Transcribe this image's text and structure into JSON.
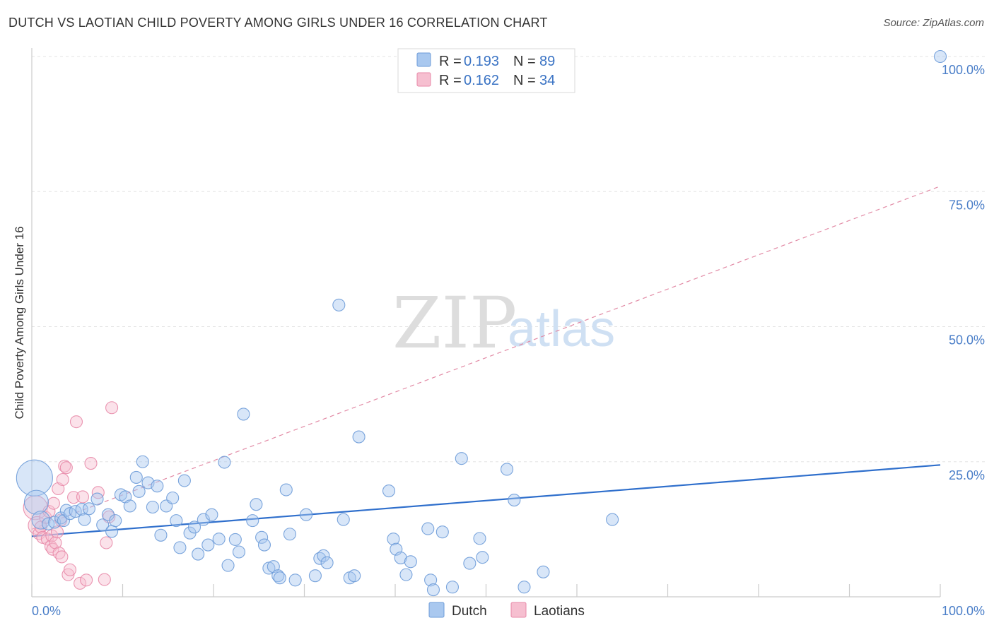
{
  "header": {
    "title": "DUTCH VS LAOTIAN CHILD POVERTY AMONG GIRLS UNDER 16 CORRELATION CHART",
    "source": "Source: ZipAtlas.com"
  },
  "watermark": {
    "zip": "ZIP",
    "atlas": "atlas"
  },
  "legend": {
    "series": [
      {
        "name": "Dutch",
        "r_label": "R =",
        "r_value": "0.193",
        "n_label": "N =",
        "n_value": "89"
      },
      {
        "name": "Laotians",
        "r_label": "R =",
        "r_value": "0.162",
        "n_label": "N =",
        "n_value": "34"
      }
    ]
  },
  "colors": {
    "dutch_fill": "#a9c8ef",
    "dutch_stroke": "#6d9bd8",
    "dutch_line": "#2f6fcc",
    "laotian_fill": "#f6bfd0",
    "laotian_stroke": "#e889a8",
    "laotian_line": "#e28aa5",
    "tick_text": "#4a7ec8"
  },
  "chart_data": {
    "type": "scatter",
    "title": "DUTCH VS LAOTIAN CHILD POVERTY AMONG GIRLS UNDER 16 CORRELATION CHART",
    "xlabel": "",
    "ylabel": "Child Poverty Among Girls Under 16",
    "xlim": [
      0,
      100
    ],
    "ylim": [
      0,
      100
    ],
    "x_tick_labels": [
      {
        "value": 0,
        "label": "0.0%"
      },
      {
        "value": 100,
        "label": "100.0%"
      }
    ],
    "y_tick_labels": [
      {
        "value": 25,
        "label": "25.0%"
      },
      {
        "value": 50,
        "label": "50.0%"
      },
      {
        "value": 75,
        "label": "75.0%"
      },
      {
        "value": 100,
        "label": "100.0%"
      }
    ],
    "grid": true,
    "series": [
      {
        "name": "Dutch",
        "trend": {
          "x": [
            0,
            100
          ],
          "y": [
            11.2,
            24.4
          ],
          "style": "solid"
        },
        "points": [
          {
            "x": 0.3,
            "y": 22.0,
            "s": 3
          },
          {
            "x": 0.5,
            "y": 17.5,
            "s": 2
          },
          {
            "x": 1.0,
            "y": 14.2,
            "s": 1.5
          },
          {
            "x": 1.8,
            "y": 13.5
          },
          {
            "x": 2.5,
            "y": 13.8
          },
          {
            "x": 3.2,
            "y": 14.6
          },
          {
            "x": 3.5,
            "y": 14.1
          },
          {
            "x": 3.8,
            "y": 16.0
          },
          {
            "x": 4.2,
            "y": 15.4
          },
          {
            "x": 4.8,
            "y": 15.8
          },
          {
            "x": 5.5,
            "y": 16.2
          },
          {
            "x": 5.8,
            "y": 14.3
          },
          {
            "x": 6.3,
            "y": 16.3
          },
          {
            "x": 7.2,
            "y": 18.1
          },
          {
            "x": 7.8,
            "y": 13.3
          },
          {
            "x": 8.4,
            "y": 15.2
          },
          {
            "x": 8.8,
            "y": 12.1
          },
          {
            "x": 9.2,
            "y": 14.1
          },
          {
            "x": 9.8,
            "y": 18.9
          },
          {
            "x": 10.3,
            "y": 18.5
          },
          {
            "x": 10.8,
            "y": 16.8
          },
          {
            "x": 11.5,
            "y": 22.1
          },
          {
            "x": 11.8,
            "y": 19.5
          },
          {
            "x": 12.2,
            "y": 25.0
          },
          {
            "x": 12.8,
            "y": 21.1
          },
          {
            "x": 13.3,
            "y": 16.6
          },
          {
            "x": 13.8,
            "y": 20.5
          },
          {
            "x": 14.2,
            "y": 11.4
          },
          {
            "x": 14.8,
            "y": 16.8
          },
          {
            "x": 15.5,
            "y": 18.3
          },
          {
            "x": 15.9,
            "y": 14.1
          },
          {
            "x": 16.3,
            "y": 9.1
          },
          {
            "x": 16.8,
            "y": 21.5
          },
          {
            "x": 17.4,
            "y": 11.8
          },
          {
            "x": 17.9,
            "y": 12.9
          },
          {
            "x": 18.3,
            "y": 7.9
          },
          {
            "x": 18.9,
            "y": 14.3
          },
          {
            "x": 19.4,
            "y": 9.6
          },
          {
            "x": 19.8,
            "y": 15.2
          },
          {
            "x": 20.6,
            "y": 10.7
          },
          {
            "x": 21.2,
            "y": 24.9
          },
          {
            "x": 21.6,
            "y": 5.8
          },
          {
            "x": 22.4,
            "y": 10.6
          },
          {
            "x": 22.8,
            "y": 8.3
          },
          {
            "x": 23.3,
            "y": 33.8
          },
          {
            "x": 24.3,
            "y": 14.1
          },
          {
            "x": 24.7,
            "y": 17.1
          },
          {
            "x": 25.3,
            "y": 11.0
          },
          {
            "x": 25.6,
            "y": 9.6
          },
          {
            "x": 26.1,
            "y": 5.3
          },
          {
            "x": 26.6,
            "y": 5.6
          },
          {
            "x": 27.1,
            "y": 3.9
          },
          {
            "x": 27.3,
            "y": 3.5
          },
          {
            "x": 28.0,
            "y": 19.8
          },
          {
            "x": 28.4,
            "y": 11.6
          },
          {
            "x": 29.0,
            "y": 3.1
          },
          {
            "x": 30.2,
            "y": 15.2
          },
          {
            "x": 31.2,
            "y": 3.9
          },
          {
            "x": 31.7,
            "y": 7.1
          },
          {
            "x": 32.1,
            "y": 7.6
          },
          {
            "x": 32.5,
            "y": 6.3
          },
          {
            "x": 33.8,
            "y": 54.0
          },
          {
            "x": 34.3,
            "y": 14.3
          },
          {
            "x": 35.0,
            "y": 3.5
          },
          {
            "x": 35.5,
            "y": 3.9
          },
          {
            "x": 36.0,
            "y": 29.6
          },
          {
            "x": 39.3,
            "y": 19.6
          },
          {
            "x": 39.8,
            "y": 10.7
          },
          {
            "x": 40.1,
            "y": 8.8
          },
          {
            "x": 40.6,
            "y": 7.2
          },
          {
            "x": 41.2,
            "y": 4.1
          },
          {
            "x": 41.7,
            "y": 6.5
          },
          {
            "x": 43.6,
            "y": 12.6
          },
          {
            "x": 43.9,
            "y": 3.1
          },
          {
            "x": 44.2,
            "y": 1.3
          },
          {
            "x": 45.2,
            "y": 12.0
          },
          {
            "x": 46.3,
            "y": 1.8
          },
          {
            "x": 47.3,
            "y": 25.6
          },
          {
            "x": 48.2,
            "y": 6.2
          },
          {
            "x": 49.3,
            "y": 10.8
          },
          {
            "x": 49.6,
            "y": 7.3
          },
          {
            "x": 52.3,
            "y": 23.6
          },
          {
            "x": 53.1,
            "y": 17.9
          },
          {
            "x": 54.2,
            "y": 1.8
          },
          {
            "x": 56.3,
            "y": 4.6
          },
          {
            "x": 63.9,
            "y": 14.3
          },
          {
            "x": 100.0,
            "y": 100.0
          }
        ]
      },
      {
        "name": "Laotians",
        "trend": {
          "x": [
            0,
            100
          ],
          "y": [
            12.5,
            76.0
          ],
          "style": "dashed"
        },
        "points": [
          {
            "x": 0.4,
            "y": 16.5,
            "s": 2
          },
          {
            "x": 0.6,
            "y": 13.2,
            "s": 1.5
          },
          {
            "x": 0.8,
            "y": 11.7
          },
          {
            "x": 1.0,
            "y": 12.9
          },
          {
            "x": 1.2,
            "y": 11.0
          },
          {
            "x": 1.5,
            "y": 14.7
          },
          {
            "x": 1.7,
            "y": 10.7
          },
          {
            "x": 1.9,
            "y": 15.8
          },
          {
            "x": 2.1,
            "y": 9.3
          },
          {
            "x": 2.2,
            "y": 11.3
          },
          {
            "x": 2.3,
            "y": 8.8
          },
          {
            "x": 2.4,
            "y": 17.3
          },
          {
            "x": 2.6,
            "y": 10.0
          },
          {
            "x": 2.8,
            "y": 12.0
          },
          {
            "x": 2.9,
            "y": 20.0
          },
          {
            "x": 3.0,
            "y": 8.1
          },
          {
            "x": 3.2,
            "y": 14.2
          },
          {
            "x": 3.3,
            "y": 7.4
          },
          {
            "x": 3.4,
            "y": 21.7
          },
          {
            "x": 3.6,
            "y": 24.2
          },
          {
            "x": 3.8,
            "y": 23.9
          },
          {
            "x": 4.0,
            "y": 4.1
          },
          {
            "x": 4.2,
            "y": 5.0
          },
          {
            "x": 4.6,
            "y": 18.4
          },
          {
            "x": 4.9,
            "y": 32.4
          },
          {
            "x": 5.3,
            "y": 2.5
          },
          {
            "x": 5.6,
            "y": 18.5
          },
          {
            "x": 6.0,
            "y": 3.1
          },
          {
            "x": 6.5,
            "y": 24.7
          },
          {
            "x": 7.3,
            "y": 19.3
          },
          {
            "x": 8.0,
            "y": 3.2
          },
          {
            "x": 8.2,
            "y": 10.0
          },
          {
            "x": 8.5,
            "y": 14.8
          },
          {
            "x": 8.8,
            "y": 35.0
          }
        ]
      }
    ]
  },
  "bottom_legend": [
    {
      "name": "Dutch"
    },
    {
      "name": "Laotians"
    }
  ]
}
